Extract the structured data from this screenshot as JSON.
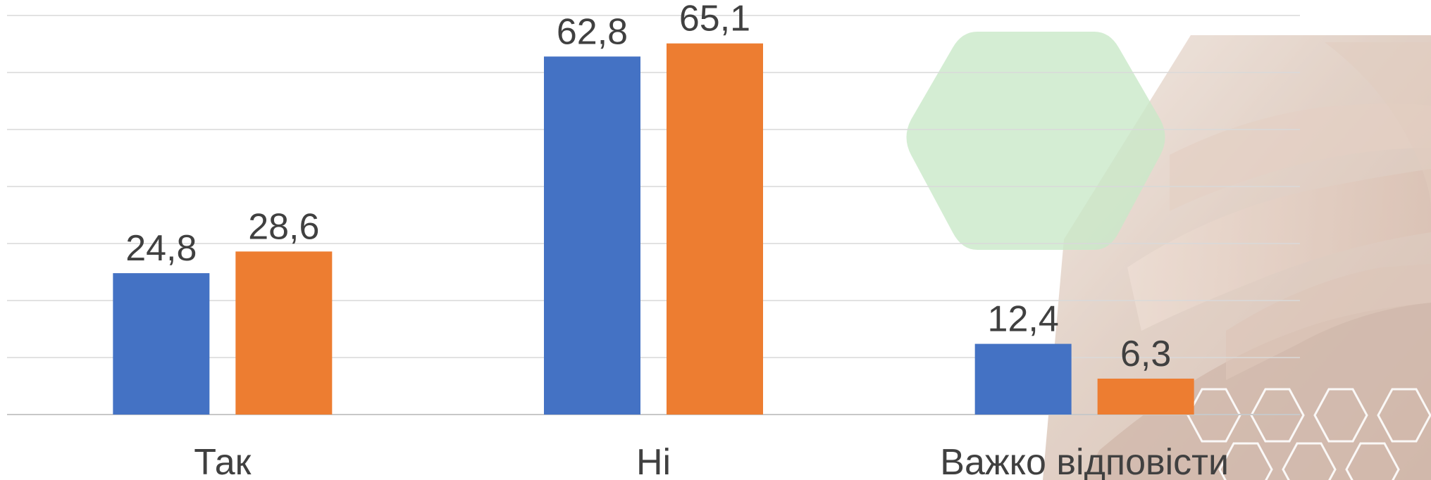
{
  "chart_data": {
    "type": "bar",
    "categories": [
      "Так",
      "Ні",
      "Важко відповісти"
    ],
    "series": [
      {
        "values": [
          24.8,
          62.8,
          12.4
        ],
        "color": "#4472C4"
      },
      {
        "values": [
          28.6,
          65.1,
          6.3
        ],
        "color": "#ED7D31"
      }
    ],
    "data_labels": [
      [
        "24,8",
        "62,8",
        "12,4"
      ],
      [
        "28,6",
        "65,1",
        "6,3"
      ]
    ],
    "ylim": [
      0,
      70
    ],
    "grid": true,
    "gridline_step": 10,
    "title": "",
    "xlabel": "",
    "ylabel": ""
  },
  "decoration": {
    "hexagon_color": "#C9E8C8",
    "photo_subject": "stacked-hands-photo"
  }
}
